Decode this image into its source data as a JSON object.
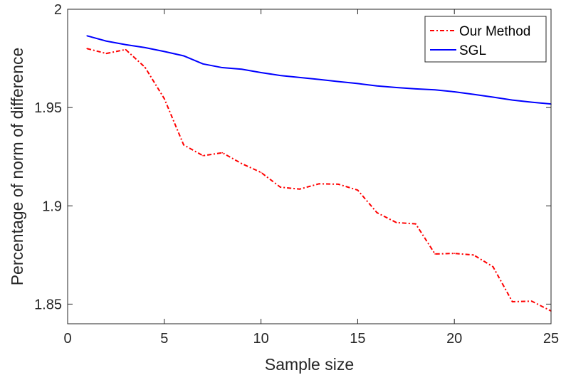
{
  "chart_data": {
    "type": "line",
    "xlabel": "Sample size",
    "ylabel": "Percentage of norm of difference",
    "xlim": [
      0,
      25
    ],
    "ylim": [
      1.84,
      2.0
    ],
    "xticks": [
      0,
      5,
      10,
      15,
      20,
      25
    ],
    "xtick_labels": [
      "0",
      "5",
      "10",
      "15",
      "20",
      "25"
    ],
    "yticks": [
      1.85,
      1.9,
      1.95,
      2.0
    ],
    "ytick_labels": [
      "1.85",
      "1.9",
      "1.95",
      "2"
    ],
    "grid": false,
    "legend_position": "top-right",
    "x": [
      1,
      2,
      3,
      4,
      5,
      6,
      7,
      8,
      9,
      10,
      11,
      12,
      13,
      14,
      15,
      16,
      17,
      18,
      19,
      20,
      21,
      22,
      23,
      24,
      25
    ],
    "series": [
      {
        "name": "Our Method",
        "color": "#ff0000",
        "line_style": "dash-dot",
        "values": [
          1.98,
          1.9775,
          1.9795,
          1.9705,
          1.9545,
          1.931,
          1.9255,
          1.927,
          1.9215,
          1.917,
          1.9095,
          1.9085,
          1.9112,
          1.911,
          1.908,
          1.8965,
          1.8915,
          1.8908,
          1.8755,
          1.8758,
          1.875,
          1.869,
          1.8512,
          1.8515,
          1.8465
        ]
      },
      {
        "name": "SGL",
        "color": "#0000ff",
        "line_style": "solid",
        "values": [
          1.9865,
          1.9838,
          1.982,
          1.9805,
          1.9785,
          1.9763,
          1.9722,
          1.9703,
          1.9695,
          1.9678,
          1.9663,
          1.9653,
          1.9643,
          1.9632,
          1.9622,
          1.961,
          1.9602,
          1.9595,
          1.959,
          1.958,
          1.9567,
          1.9553,
          1.9538,
          1.9527,
          1.9518
        ]
      }
    ]
  }
}
